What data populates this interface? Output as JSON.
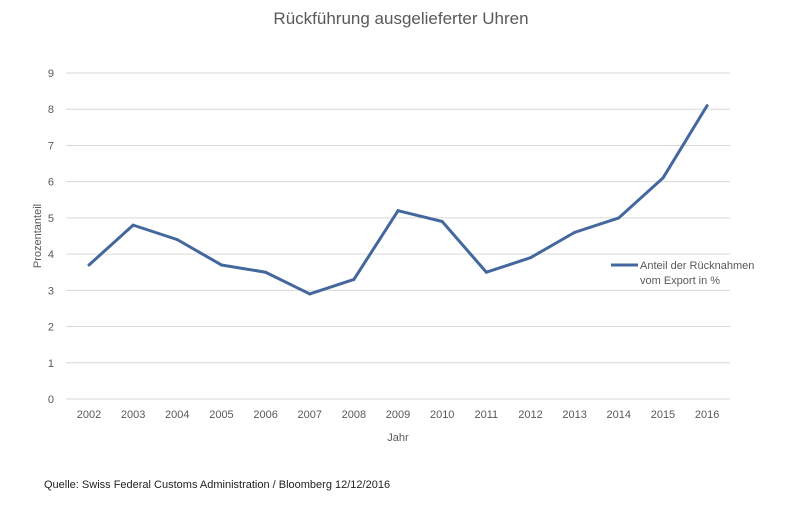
{
  "chart_data": {
    "type": "line",
    "title": "Rückführung ausgelieferter Uhren",
    "xlabel": "Jahr",
    "ylabel": "Prozentanteil",
    "ylim": [
      0,
      9
    ],
    "yticks": [
      "0",
      "1",
      "2",
      "3",
      "4",
      "5",
      "6",
      "7",
      "8",
      "9"
    ],
    "grid": true,
    "legend_position": "right",
    "categories": [
      "2002",
      "2003",
      "2004",
      "2005",
      "2006",
      "2007",
      "2008",
      "2009",
      "2010",
      "2011",
      "2012",
      "2013",
      "2014",
      "2015",
      "2016"
    ],
    "series": [
      {
        "name_lines": [
          "Anteil der Rücknahmen",
          "vom Export in %"
        ],
        "color": "#44689e",
        "values": [
          3.7,
          4.8,
          4.4,
          3.7,
          3.5,
          2.9,
          3.3,
          5.2,
          4.9,
          3.5,
          3.9,
          4.6,
          5.0,
          6.1,
          8.1
        ]
      }
    ]
  },
  "source": "Quelle: Swiss Federal Customs Administration / Bloomberg  12/12/2016"
}
